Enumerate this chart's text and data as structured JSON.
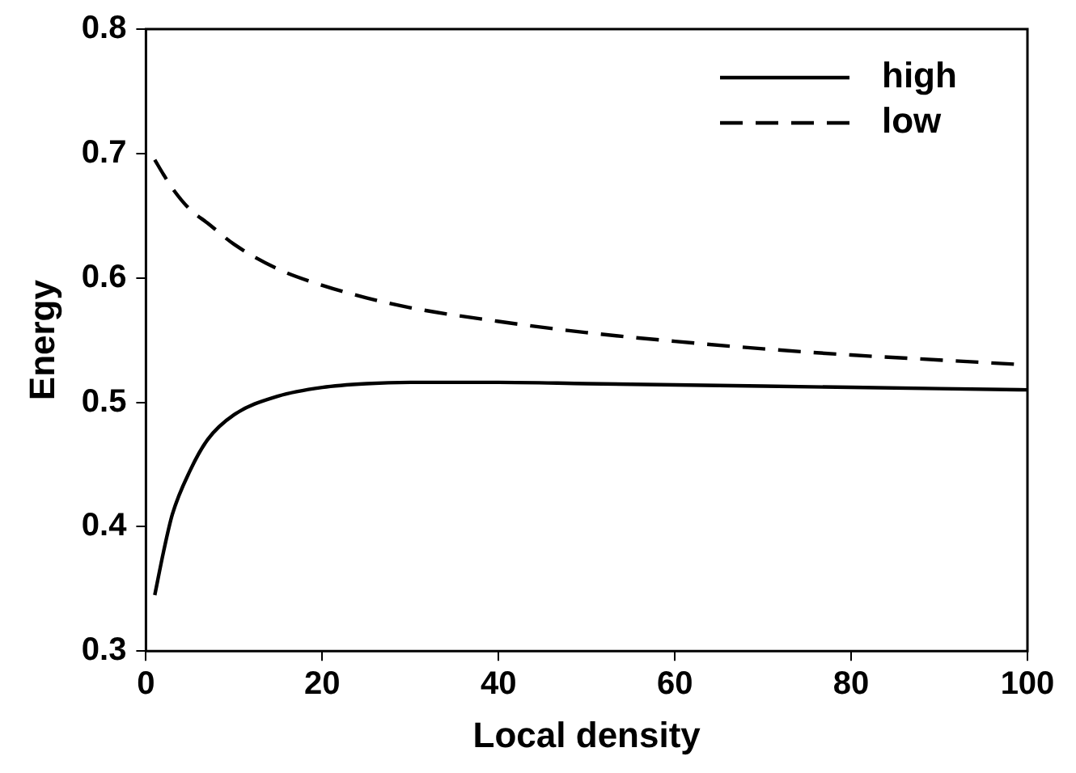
{
  "chart_data": {
    "type": "line",
    "xlabel": "Local density",
    "ylabel": "Energy",
    "xlim": [
      0,
      100
    ],
    "xticks": [
      0,
      20,
      40,
      60,
      80,
      100
    ],
    "ylim": [
      0.3,
      0.8
    ],
    "yticks": [
      0.3,
      0.4,
      0.5,
      0.6,
      0.7,
      0.8
    ],
    "grid": false,
    "legend": "top right",
    "marker": "none",
    "x": [
      1,
      2,
      3,
      5,
      7,
      10,
      15,
      20,
      25,
      30,
      40,
      50,
      60,
      70,
      80,
      90,
      100
    ],
    "series": [
      {
        "name": "high",
        "color": "#000000",
        "line_style": "solid",
        "values": [
          0.345,
          0.38,
          0.41,
          0.445,
          0.47,
          0.49,
          0.505,
          0.512,
          0.515,
          0.516,
          0.516,
          0.515,
          0.514,
          0.513,
          0.512,
          0.511,
          0.51
        ]
      },
      {
        "name": "low",
        "color": "#000000",
        "line_style": "dashed",
        "values": [
          0.695,
          0.683,
          0.672,
          0.655,
          0.644,
          0.627,
          0.607,
          0.594,
          0.584,
          0.576,
          0.565,
          0.556,
          0.549,
          0.543,
          0.538,
          0.534,
          0.53
        ]
      }
    ]
  }
}
